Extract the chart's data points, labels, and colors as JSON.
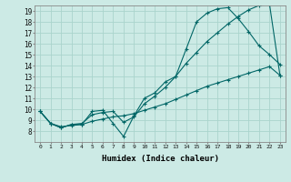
{
  "xlabel": "Humidex (Indice chaleur)",
  "bg_color": "#cceae5",
  "grid_color": "#aad4cc",
  "line_color": "#006666",
  "line1_x": [
    0,
    1,
    2,
    3,
    4,
    5,
    6,
    7,
    8,
    9,
    10,
    11,
    12,
    13,
    14,
    15,
    16,
    17,
    18,
    19,
    20,
    21,
    22,
    23
  ],
  "line1_y": [
    9.8,
    8.7,
    8.3,
    8.6,
    8.6,
    9.8,
    9.9,
    8.7,
    7.5,
    9.4,
    11.0,
    11.5,
    12.5,
    13.0,
    15.5,
    18.0,
    18.8,
    19.2,
    19.3,
    18.3,
    17.1,
    15.8,
    15.0,
    14.1
  ],
  "line2_x": [
    0,
    1,
    2,
    3,
    4,
    5,
    6,
    7,
    8,
    9,
    10,
    11,
    12,
    13,
    14,
    15,
    16,
    17,
    18,
    19,
    20,
    21,
    22,
    23
  ],
  "line2_y": [
    9.8,
    8.7,
    8.3,
    8.6,
    8.7,
    9.5,
    9.7,
    9.8,
    8.8,
    9.3,
    10.5,
    11.2,
    12.0,
    13.0,
    14.2,
    15.2,
    16.2,
    17.0,
    17.8,
    18.5,
    19.1,
    19.5,
    19.6,
    13.1
  ],
  "line3_x": [
    0,
    1,
    2,
    3,
    4,
    5,
    6,
    7,
    8,
    9,
    10,
    11,
    12,
    13,
    14,
    15,
    16,
    17,
    18,
    19,
    20,
    21,
    22,
    23
  ],
  "line3_y": [
    9.8,
    8.7,
    8.4,
    8.5,
    8.6,
    8.9,
    9.1,
    9.3,
    9.4,
    9.6,
    9.9,
    10.2,
    10.5,
    10.9,
    11.3,
    11.7,
    12.1,
    12.4,
    12.7,
    13.0,
    13.3,
    13.6,
    13.9,
    13.1
  ],
  "xlim": [
    -0.5,
    23.5
  ],
  "ylim": [
    7,
    19.5
  ],
  "xticks": [
    0,
    1,
    2,
    3,
    4,
    5,
    6,
    7,
    8,
    9,
    10,
    11,
    12,
    13,
    14,
    15,
    16,
    17,
    18,
    19,
    20,
    21,
    22,
    23
  ],
  "yticks": [
    8,
    9,
    10,
    11,
    12,
    13,
    14,
    15,
    16,
    17,
    18,
    19
  ]
}
